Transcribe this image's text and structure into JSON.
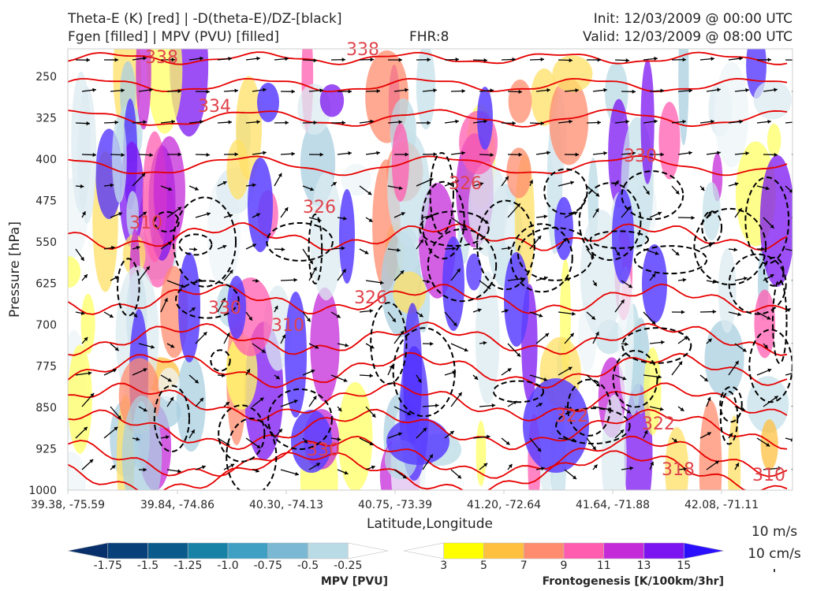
{
  "header": {
    "title_line1": "Theta-E (K) [red] | -D(theta-E)/DZ-[black]",
    "title_line2": "Fgen [filled] | MPV (PVU) [filled]",
    "fhr": "FHR:8",
    "init": "Init: 12/03/2009 @ 00:00 UTC",
    "valid": "Valid: 12/03/2009 @ 08:00 UTC"
  },
  "chart_data": {
    "type": "cross-section",
    "xlabel": "Latitude,Longitude",
    "ylabel": "Pressure [hPa]",
    "x_ticks": [
      "39.38, -75.59",
      "39.84, -74.86",
      "40.30, -74.13",
      "40.75, -73.39",
      "41.20, -72.64",
      "41.64, -71.88",
      "42.08, -71.11"
    ],
    "y_ticks": [
      250,
      325,
      400,
      475,
      550,
      625,
      700,
      775,
      850,
      925,
      1000
    ],
    "ylim": [
      1000,
      200
    ],
    "theta_e_contour_labels": [
      "338",
      "338",
      "334",
      "330",
      "330",
      "326",
      "326",
      "326",
      "322",
      "322",
      "318",
      "310",
      "310",
      "310",
      "330"
    ],
    "theta_e_color": "#e60000",
    "dthetae_dz_color": "#000000",
    "vector_reference": {
      "label1": "10 m/s",
      "label2": "10 cm/s"
    },
    "colorbars": [
      {
        "name": "MPV [PVU]",
        "tick_labels": [
          "-1.75",
          "-1.5",
          "-1.25",
          "-1.0",
          "-0.75",
          "-0.5",
          "-0.25"
        ],
        "colors": [
          "#08306b",
          "#08407a",
          "#0b5a8c",
          "#1781a6",
          "#3fa0c4",
          "#7ab8d3",
          "#b9dbe6",
          "#ffffff"
        ]
      },
      {
        "name": "Frontogenesis [K/100km/3hr]",
        "tick_labels": [
          "3",
          "5",
          "7",
          "9",
          "11",
          "13",
          "15"
        ],
        "colors": [
          "#ffffff",
          "#ffff00",
          "#ffc040",
          "#ff8c6e",
          "#ff5cb0",
          "#c42ad8",
          "#7b14f0",
          "#2a10ff"
        ]
      }
    ]
  }
}
